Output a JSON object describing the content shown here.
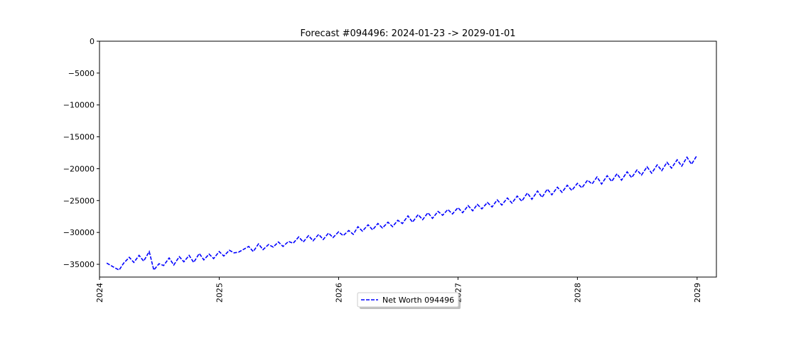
{
  "chart_data": {
    "type": "line",
    "title": "Forecast #094496: 2024-01-23 -> 2029-01-01",
    "xlabel": "",
    "ylabel": "",
    "x_range": [
      "2024-01-01",
      "2029-03-01"
    ],
    "ylim": [
      -37000,
      0
    ],
    "x_ticks": [
      "2024",
      "2025",
      "2026",
      "2027",
      "2028",
      "2029"
    ],
    "y_ticks": [
      0,
      -5000,
      -10000,
      -15000,
      -20000,
      -25000,
      -30000,
      -35000
    ],
    "y_tick_labels": [
      "0",
      "−5000",
      "−10000",
      "−15000",
      "−20000",
      "−25000",
      "−30000",
      "−35000"
    ],
    "grid": false,
    "legend": {
      "placement": "bottom-center-outside"
    },
    "series": [
      {
        "name": "Net Worth 094496",
        "color": "#0000ff",
        "line_style": "dashed",
        "x": [
          "2024-01-23",
          "2024-02-15",
          "2024-03-01",
          "2024-03-15",
          "2024-04-01",
          "2024-04-15",
          "2024-05-01",
          "2024-05-15",
          "2024-06-01",
          "2024-06-15",
          "2024-07-01",
          "2024-07-15",
          "2024-08-01",
          "2024-08-15",
          "2024-09-01",
          "2024-09-15",
          "2024-10-01",
          "2024-10-15",
          "2024-11-01",
          "2024-11-15",
          "2024-12-01",
          "2024-12-15",
          "2025-01-01",
          "2025-01-15",
          "2025-02-01",
          "2025-02-15",
          "2025-03-01",
          "2025-03-15",
          "2025-04-01",
          "2025-04-15",
          "2025-05-01",
          "2025-05-15",
          "2025-06-01",
          "2025-06-15",
          "2025-07-01",
          "2025-07-15",
          "2025-08-01",
          "2025-08-15",
          "2025-09-01",
          "2025-09-15",
          "2025-10-01",
          "2025-10-15",
          "2025-11-01",
          "2025-11-15",
          "2025-12-01",
          "2025-12-15",
          "2026-01-01",
          "2026-01-15",
          "2026-02-01",
          "2026-02-15",
          "2026-03-01",
          "2026-03-15",
          "2026-04-01",
          "2026-04-15",
          "2026-05-01",
          "2026-05-15",
          "2026-06-01",
          "2026-06-15",
          "2026-07-01",
          "2026-07-15",
          "2026-08-01",
          "2026-08-15",
          "2026-09-01",
          "2026-09-15",
          "2026-10-01",
          "2026-10-15",
          "2026-11-01",
          "2026-11-15",
          "2026-12-01",
          "2026-12-15",
          "2027-01-01",
          "2027-01-15",
          "2027-02-01",
          "2027-02-15",
          "2027-03-01",
          "2027-03-15",
          "2027-04-01",
          "2027-04-15",
          "2027-05-01",
          "2027-05-15",
          "2027-06-01",
          "2027-06-15",
          "2027-07-01",
          "2027-07-15",
          "2027-08-01",
          "2027-08-15",
          "2027-09-01",
          "2027-09-15",
          "2027-10-01",
          "2027-10-15",
          "2027-11-01",
          "2027-11-15",
          "2027-12-01",
          "2027-12-15",
          "2028-01-01",
          "2028-01-15",
          "2028-02-01",
          "2028-02-15",
          "2028-03-01",
          "2028-03-15",
          "2028-04-01",
          "2028-04-15",
          "2028-05-01",
          "2028-05-15",
          "2028-06-01",
          "2028-06-15",
          "2028-07-01",
          "2028-07-15",
          "2028-08-01",
          "2028-08-15",
          "2028-09-01",
          "2028-09-15",
          "2028-10-01",
          "2028-10-15",
          "2028-11-01",
          "2028-11-15",
          "2028-12-01",
          "2028-12-15",
          "2029-01-01"
        ],
        "y": [
          -34800,
          -35500,
          -35900,
          -34800,
          -33900,
          -34700,
          -33600,
          -34500,
          -33000,
          -35900,
          -34900,
          -35200,
          -34000,
          -35100,
          -33800,
          -34600,
          -33600,
          -34700,
          -33300,
          -34300,
          -33400,
          -34100,
          -33000,
          -33700,
          -32800,
          -33200,
          -33100,
          -32700,
          -32200,
          -33000,
          -31800,
          -32700,
          -31900,
          -32300,
          -31500,
          -32200,
          -31400,
          -31700,
          -30700,
          -31500,
          -30500,
          -31300,
          -30300,
          -31100,
          -30100,
          -30800,
          -29900,
          -30500,
          -29700,
          -30300,
          -29100,
          -29800,
          -28800,
          -29600,
          -28600,
          -29300,
          -28400,
          -29100,
          -28100,
          -28600,
          -27400,
          -28400,
          -27200,
          -28000,
          -26900,
          -27800,
          -26700,
          -27300,
          -26400,
          -27100,
          -26100,
          -26900,
          -25800,
          -26600,
          -25600,
          -26300,
          -25300,
          -26000,
          -24900,
          -25700,
          -24600,
          -25400,
          -24300,
          -25100,
          -23800,
          -24800,
          -23500,
          -24500,
          -23200,
          -24100,
          -22900,
          -23700,
          -22600,
          -23400,
          -22300,
          -23000,
          -21800,
          -22400,
          -21300,
          -22400,
          -21100,
          -22000,
          -20800,
          -21800,
          -20500,
          -21400,
          -20200,
          -21000,
          -19700,
          -20700,
          -19400,
          -20300,
          -19000,
          -19900,
          -18600,
          -19600,
          -18200,
          -19300,
          -17900
        ]
      }
    ]
  }
}
